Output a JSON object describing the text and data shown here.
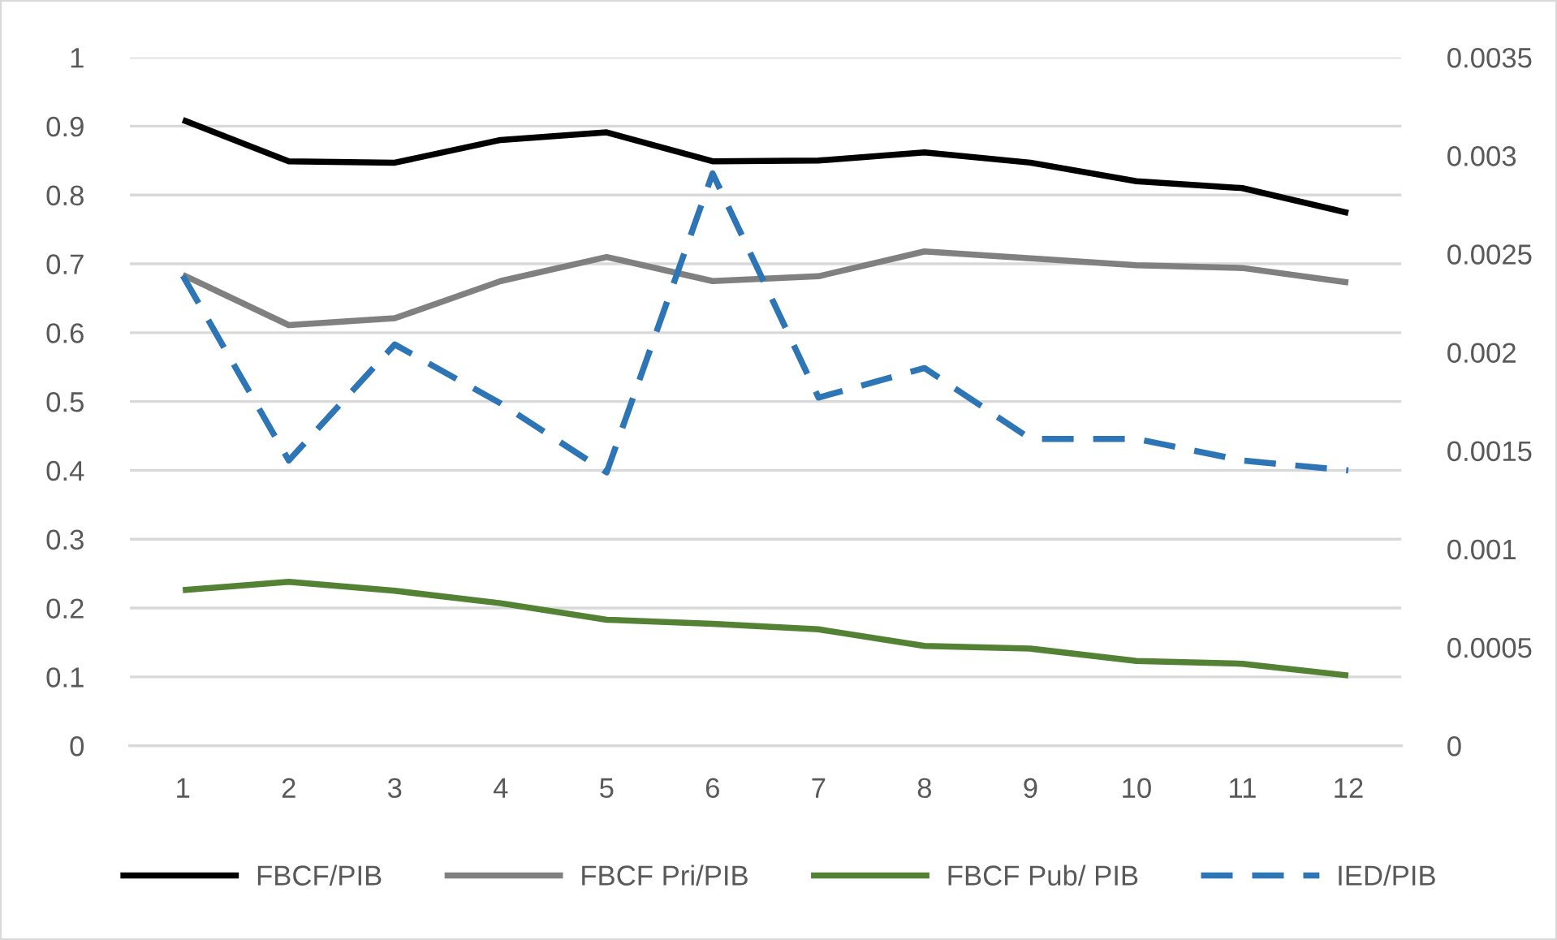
{
  "chart_data": {
    "type": "line",
    "categories": [
      "1",
      "2",
      "3",
      "4",
      "5",
      "6",
      "7",
      "8",
      "9",
      "10",
      "11",
      "12"
    ],
    "series": [
      {
        "name": "FBCF/PIB",
        "color": "#000000",
        "values": [
          0.909,
          0.849,
          0.847,
          0.88,
          0.891,
          0.849,
          0.85,
          0.862,
          0.847,
          0.82,
          0.81,
          0.774
        ]
      },
      {
        "name": "FBCF Pri/PIB",
        "color": "#808080",
        "values": [
          0.684,
          0.611,
          0.621,
          0.675,
          0.71,
          0.675,
          0.682,
          0.718,
          0.708,
          0.698,
          0.694,
          0.673
        ]
      },
      {
        "name": "FBCF Pub/ PIB",
        "color": "#548235",
        "values": [
          0.226,
          0.238,
          0.225,
          0.207,
          0.183,
          0.177,
          0.169,
          0.145,
          0.141,
          0.123,
          0.119,
          0.102
        ]
      },
      {
        "name": "IED/PIB",
        "color": "#2e75b6",
        "axis": "y2",
        "line_style": "dashed",
        "values": [
          0.00239,
          0.00145,
          0.00204,
          0.00174,
          0.00139,
          0.00291,
          0.00177,
          0.00192,
          0.00156,
          0.00156,
          0.00145,
          0.0014
        ]
      }
    ],
    "ylim": [
      0,
      1
    ],
    "yticks": [
      0,
      0.1,
      0.2,
      0.3,
      0.4,
      0.5,
      0.6,
      0.7,
      0.8,
      0.9,
      1
    ],
    "y2lim": [
      0,
      0.0035
    ],
    "y2ticks": [
      0,
      0.0005,
      0.001,
      0.0015,
      0.002,
      0.0025,
      0.003,
      0.0035
    ],
    "grid": "y",
    "legend": "bottom",
    "line_style": "solid",
    "marker": "none"
  }
}
